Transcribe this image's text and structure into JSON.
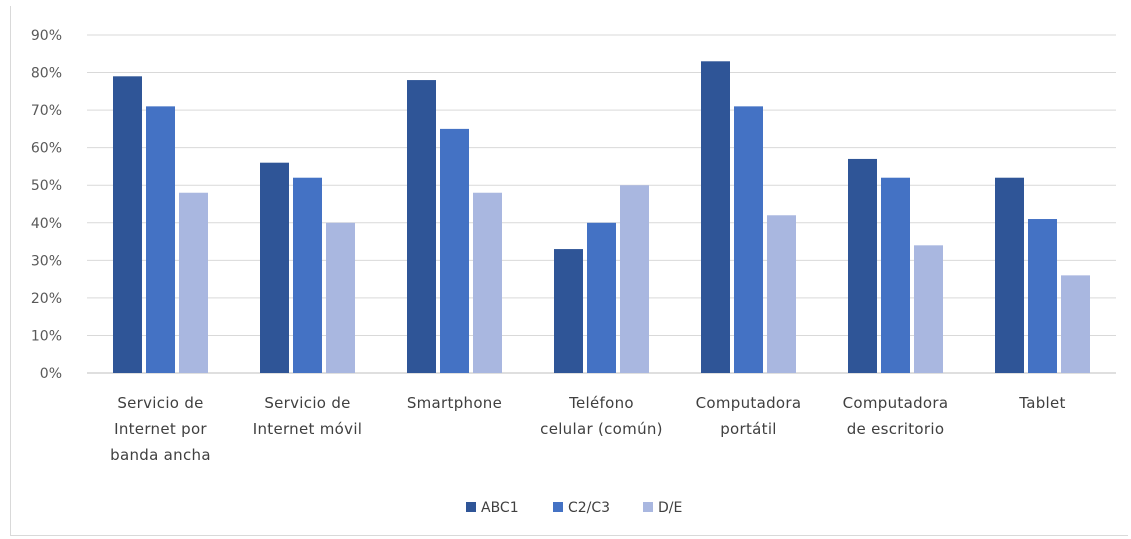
{
  "chart_data": {
    "type": "bar",
    "title": "",
    "xlabel": "",
    "ylabel": "",
    "ylim": [
      0,
      90
    ],
    "yticks": [
      "0%",
      "10%",
      "20%",
      "30%",
      "40%",
      "50%",
      "60%",
      "70%",
      "80%",
      "90%"
    ],
    "grid": true,
    "legend_position": "bottom",
    "categories": [
      [
        "Servicio de",
        "Internet por",
        "banda ancha"
      ],
      [
        "Servicio de",
        "Internet móvil"
      ],
      [
        "Smartphone"
      ],
      [
        "Teléfono",
        "celular (común)"
      ],
      [
        "Computadora",
        "portátil"
      ],
      [
        "Computadora",
        "de escritorio"
      ],
      [
        "Tablet"
      ]
    ],
    "series": [
      {
        "name": "ABC1",
        "color": "#2f5597",
        "values": [
          79,
          56,
          78,
          33,
          83,
          57,
          52
        ]
      },
      {
        "name": "C2/C3",
        "color": "#4472c4",
        "values": [
          71,
          52,
          65,
          40,
          71,
          52,
          41
        ]
      },
      {
        "name": "D/E",
        "color": "#a9b7e0",
        "values": [
          48,
          40,
          48,
          50,
          42,
          34,
          26
        ]
      }
    ]
  }
}
